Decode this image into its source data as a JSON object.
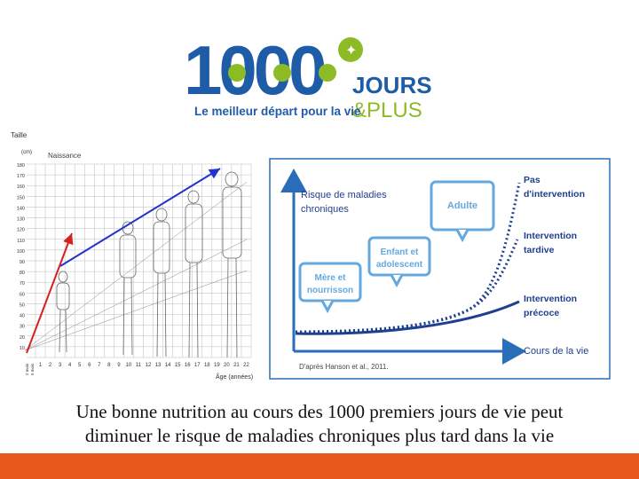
{
  "logo": {
    "number": "1000",
    "word1": "JOURS",
    "word2": "&PLUS",
    "tagline": "Le meilleur départ pour la vie"
  },
  "growth_chart": {
    "ylabel": "Taille",
    "yunit": "(cm)",
    "yticks": [
      "180",
      "170",
      "160",
      "150",
      "140",
      "130",
      "120",
      "110",
      "100",
      "90",
      "80",
      "70",
      "60",
      "50",
      "40",
      "30",
      "20",
      "10"
    ],
    "xticks": [
      "1",
      "2",
      "3",
      "4",
      "5",
      "6",
      "7",
      "8",
      "9",
      "10",
      "11",
      "12",
      "13",
      "14",
      "15",
      "16",
      "17",
      "18",
      "19",
      "20",
      "21",
      "22"
    ],
    "xlabel": "Âge (années)",
    "birth_label": "Naissance",
    "left_ticks": [
      "2 mois",
      "5 mois"
    ]
  },
  "risk_chart": {
    "ylabel_line1": "Risque de maladies",
    "ylabel_line2": "chroniques",
    "xlabel": "Cours de la vie",
    "bubbles": [
      {
        "line1": "Mère et",
        "line2": "nourrisson"
      },
      {
        "line1": "Enfant et",
        "line2": "adolescent"
      },
      {
        "line1": "Adulte",
        "line2": ""
      }
    ],
    "curves": [
      {
        "line1": "Pas",
        "line2": "d'intervention"
      },
      {
        "line1": "Intervention",
        "line2": "tardive"
      },
      {
        "line1": "Intervention",
        "line2": "précoce"
      }
    ],
    "source": "D'après Hanson et al., 2011.",
    "colors": {
      "frame": "#2a6db8",
      "curve": "#1f3f8f",
      "bubble": "#63a9e0"
    }
  },
  "caption": {
    "line1": "Une bonne nutrition au cours des 1000 premiers jours de vie peut",
    "line2": "diminuer le risque de maladies chroniques plus tard dans la vie"
  },
  "colors": {
    "accent_bar": "#e8581d",
    "logo_blue": "#1f5ca8",
    "logo_green": "#8dbb25"
  }
}
